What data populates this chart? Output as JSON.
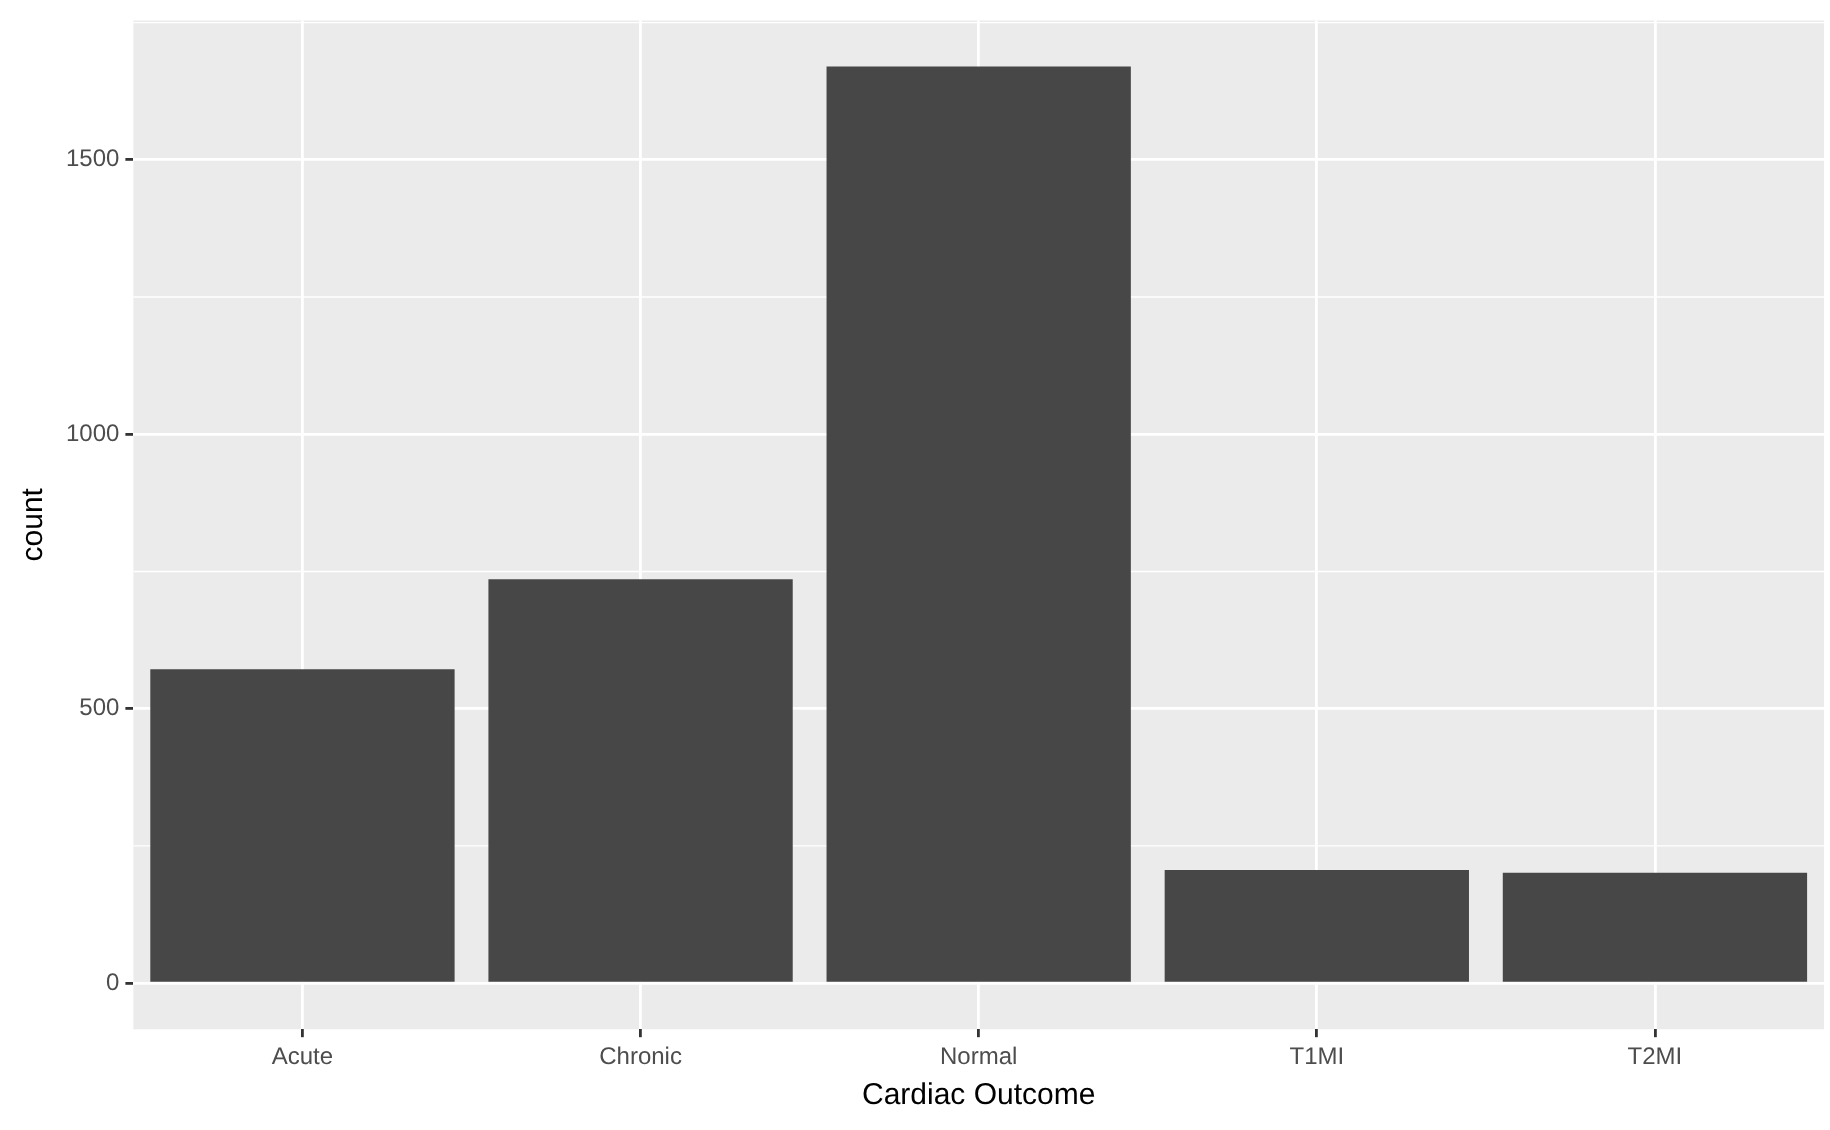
{
  "chart_data": {
    "type": "bar",
    "xlabel": "Cardiac Outcome",
    "ylabel": "count",
    "categories": [
      "Acute",
      "Chronic",
      "Normal",
      "T1MI",
      "T2MI"
    ],
    "values": [
      572,
      736,
      1670,
      206,
      201
    ],
    "color": "#474747",
    "ylim": [
      -84,
      1754
    ],
    "yticks": [
      0,
      500,
      1000,
      1500
    ],
    "grid": true
  }
}
